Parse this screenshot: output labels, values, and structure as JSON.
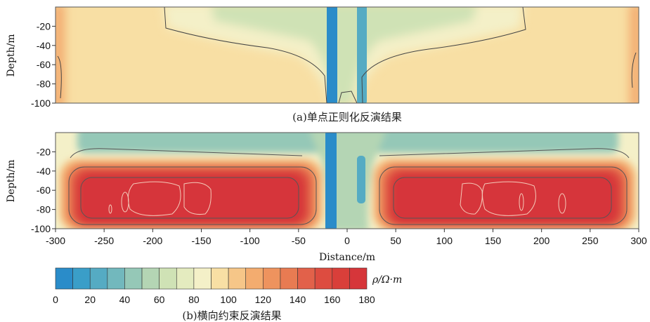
{
  "chart_data": [
    {
      "type": "heatmap",
      "caption": "(a)单点正则化反演结果",
      "ylabel": "Depth/m",
      "yticks": [
        -20,
        -40,
        -60,
        -80,
        -100
      ],
      "ylim": [
        -100,
        0
      ],
      "xlim": [
        -300,
        300
      ],
      "background_rho": 95,
      "edge_rho": 115,
      "features": [
        {
          "kind": "conductive_plume",
          "x_range": [
            -240,
            240
          ],
          "depth_range": [
            0,
            -95
          ],
          "rho": 62
        },
        {
          "kind": "vertical_conductor",
          "x_center": -15,
          "rho": 5
        },
        {
          "kind": "vertical_conductor",
          "x_center": 15,
          "rho": 25
        }
      ]
    },
    {
      "type": "heatmap",
      "caption": "(b)横向约束反演结果",
      "ylabel": "Depth/m",
      "xlabel": "Distance/m",
      "xticks": [
        -300,
        -250,
        -200,
        -150,
        -100,
        -50,
        0,
        50,
        100,
        150,
        200,
        250,
        300
      ],
      "yticks": [
        -20,
        -40,
        -60,
        -80,
        -100
      ],
      "ylim": [
        -100,
        0
      ],
      "xlim": [
        -300,
        300
      ],
      "background_rho": 80,
      "features": [
        {
          "kind": "resistive_layer",
          "x_range": [
            -290,
            -40
          ],
          "depth_range": [
            -38,
            -95
          ],
          "rho": 170
        },
        {
          "kind": "resistive_layer",
          "x_range": [
            40,
            290
          ],
          "depth_range": [
            -38,
            -95
          ],
          "rho": 170
        },
        {
          "kind": "conductive_layer",
          "x_range": [
            -300,
            300
          ],
          "depth_range": [
            0,
            -20
          ],
          "rho": 40
        },
        {
          "kind": "vertical_conductor",
          "x_center": -15,
          "rho": 5
        },
        {
          "kind": "vertical_conductor",
          "x_center": 15,
          "rho": 20
        }
      ]
    }
  ],
  "colorbar": {
    "label": "ρ/Ω·m",
    "ticks": [
      0,
      20,
      40,
      60,
      80,
      100,
      120,
      140,
      160,
      180
    ],
    "step": 10,
    "colors": [
      "#2a8cc9",
      "#3a9ec8",
      "#55abc3",
      "#72b8bd",
      "#95c8b7",
      "#b4d5b4",
      "#cfe2b5",
      "#e4ebbf",
      "#f4f0c8",
      "#f8dfa4",
      "#f6c688",
      "#f3ac6f",
      "#ee935e",
      "#e87b52",
      "#e2614a",
      "#dd4c40",
      "#d93f3a",
      "#d6363a"
    ]
  }
}
